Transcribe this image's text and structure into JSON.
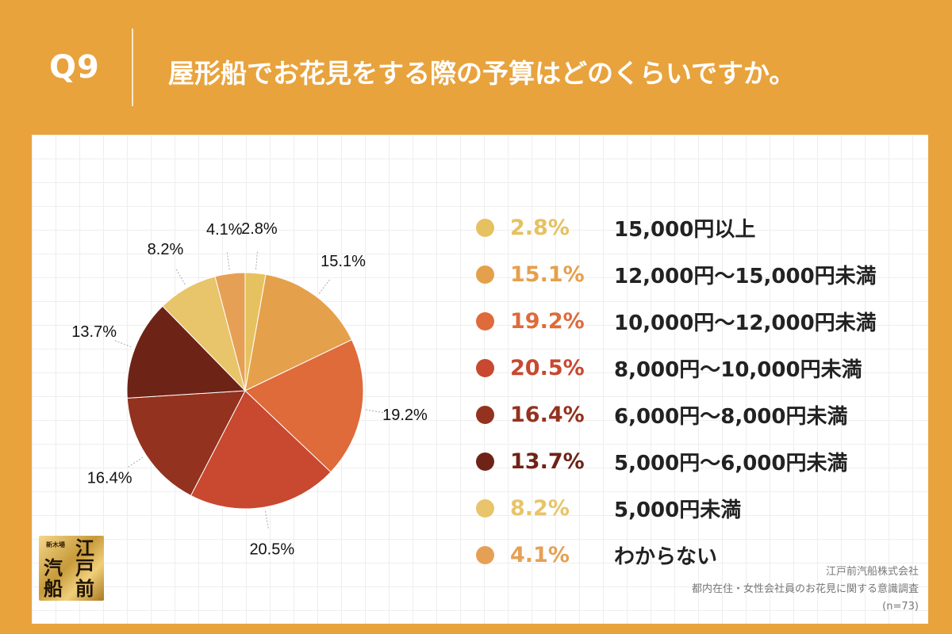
{
  "header": {
    "q_label": "Q9",
    "question": "屋形船でお花見をする際の予算はどのくらいですか。"
  },
  "chart_data": {
    "type": "pie",
    "title": "",
    "slices": [
      {
        "label": "15,000円以上",
        "value": 2.8,
        "display": "2.8%",
        "color": "#E6C160"
      },
      {
        "label": "12,000円〜15,000円未満",
        "value": 15.1,
        "display": "15.1%",
        "color": "#E5A04C"
      },
      {
        "label": "10,000円〜12,000円未満",
        "value": 19.2,
        "display": "19.2%",
        "color": "#DF6A3A"
      },
      {
        "label": "8,000円〜10,000円未満",
        "value": 20.5,
        "display": "20.5%",
        "color": "#C84830"
      },
      {
        "label": "6,000円〜8,000円未満",
        "value": 16.4,
        "display": "16.4%",
        "color": "#93321F"
      },
      {
        "label": "5,000円〜6,000円未満",
        "value": 13.7,
        "display": "13.7%",
        "color": "#6E2317"
      },
      {
        "label": "5,000円未満",
        "value": 8.2,
        "display": "8.2%",
        "color": "#E8C46A"
      },
      {
        "label": "わからない",
        "value": 4.1,
        "display": "4.1%",
        "color": "#E6A055"
      }
    ]
  },
  "logo": {
    "small_text": "新木場",
    "chars": [
      "江",
      "戸",
      "汽",
      "前",
      "船"
    ]
  },
  "footer": {
    "company": "江戸前汽船株式会社",
    "survey": "都内在住・女性会社員のお花見に関する意識調査",
    "sample": "(n=73)"
  }
}
